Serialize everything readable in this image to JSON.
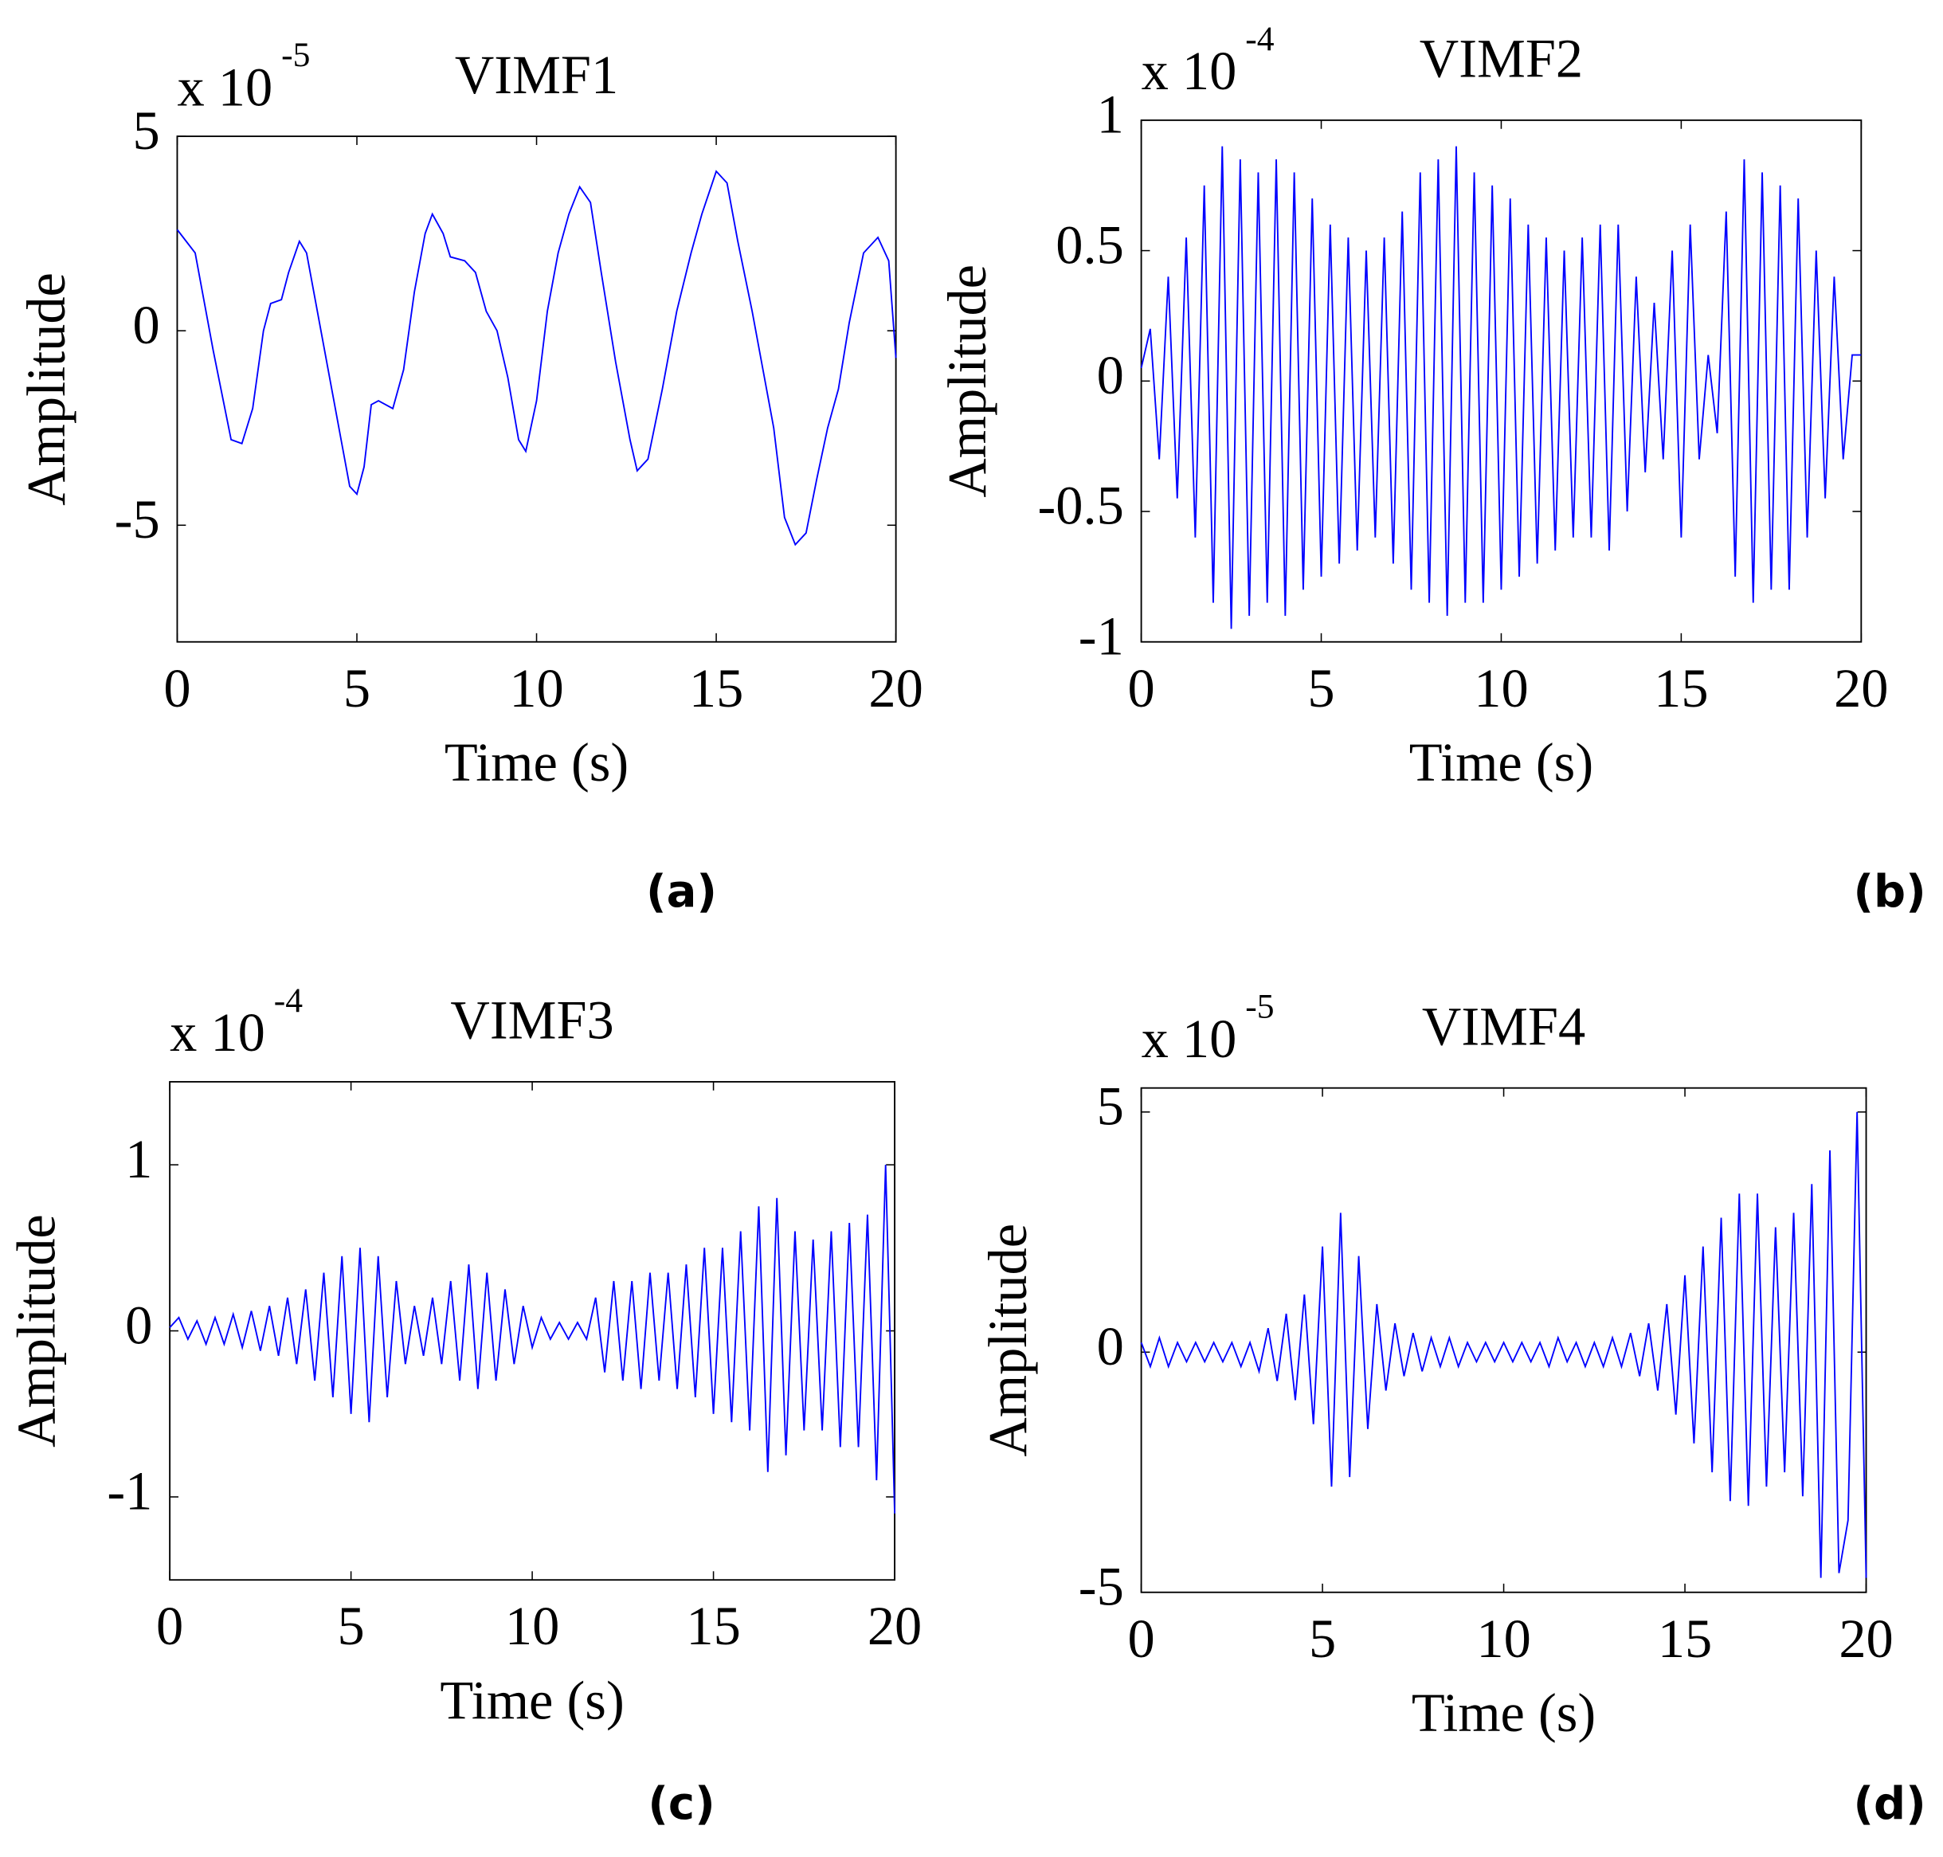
{
  "chart_data": [
    {
      "type": "line",
      "title": "VIMF1",
      "exponent_base": "x 10",
      "exponent": "-5",
      "xlabel": "Time (s)",
      "ylabel": "Amplitude",
      "panel_label": "(a)",
      "color": "#0000ff",
      "x": [
        0,
        0.5,
        1.0,
        1.5,
        1.8,
        2.1,
        2.4,
        2.6,
        2.9,
        3.1,
        3.4,
        3.6,
        3.9,
        4.3,
        4.6,
        4.8,
        5.0,
        5.2,
        5.4,
        5.6,
        6.0,
        6.3,
        6.6,
        6.9,
        7.1,
        7.4,
        7.6,
        8.0,
        8.3,
        8.6,
        8.9,
        9.2,
        9.5,
        9.7,
        10.0,
        10.3,
        10.6,
        10.9,
        11.2,
        11.5,
        11.8,
        12.2,
        12.6,
        12.8,
        13.1,
        13.5,
        13.9,
        14.3,
        14.6,
        15.0,
        15.3,
        15.6,
        16.0,
        16.3,
        16.6,
        16.9,
        17.2,
        17.5,
        17.8,
        18.1,
        18.4,
        18.7,
        19.1,
        19.5,
        19.8,
        20.0
      ],
      "values": [
        2.6,
        2.0,
        -0.5,
        -2.8,
        -2.9,
        -2.0,
        0,
        0.7,
        0.8,
        1.5,
        2.3,
        2.0,
        0.5,
        -1.5,
        -3.0,
        -4.0,
        -4.2,
        -3.5,
        -1.9,
        -1.8,
        -2.0,
        -1.0,
        1.0,
        2.5,
        3.0,
        2.5,
        1.9,
        1.8,
        1.5,
        0.5,
        0,
        -1.2,
        -2.8,
        -3.1,
        -1.8,
        0.5,
        2.0,
        3.0,
        3.7,
        3.3,
        1.5,
        -0.8,
        -2.8,
        -3.6,
        -3.3,
        -1.5,
        0.5,
        2.0,
        3.0,
        4.1,
        3.8,
        2.3,
        0.5,
        -1.0,
        -2.5,
        -4.8,
        -5.5,
        -5.2,
        -3.8,
        -2.5,
        -1.5,
        0.2,
        2.0,
        2.4,
        1.8,
        -0.7
      ],
      "xlim": [
        0,
        20
      ],
      "xticks": [
        0,
        5,
        10,
        15,
        20
      ],
      "ylim": [
        -8,
        5
      ],
      "yticks": [
        -5,
        0,
        5
      ]
    },
    {
      "type": "line",
      "title": "VIMF2",
      "exponent_base": "x 10",
      "exponent": "-4",
      "xlabel": "Time (s)",
      "ylabel": "Amplitude",
      "panel_label": "(b)",
      "color": "#0000ff",
      "x": [
        0,
        0.25,
        0.5,
        0.75,
        1,
        1.25,
        1.5,
        1.75,
        2,
        2.25,
        2.5,
        2.75,
        3,
        3.25,
        3.5,
        3.75,
        4,
        4.25,
        4.5,
        4.75,
        5,
        5.25,
        5.5,
        5.75,
        6,
        6.25,
        6.5,
        6.75,
        7,
        7.25,
        7.5,
        7.75,
        8,
        8.25,
        8.5,
        8.75,
        9,
        9.25,
        9.5,
        9.75,
        10,
        10.25,
        10.5,
        10.75,
        11,
        11.25,
        11.5,
        11.75,
        12,
        12.25,
        12.5,
        12.75,
        13,
        13.25,
        13.5,
        13.75,
        14,
        14.25,
        14.5,
        14.75,
        15,
        15.25,
        15.5,
        15.75,
        16,
        16.25,
        16.5,
        16.75,
        17,
        17.25,
        17.5,
        17.75,
        18,
        18.25,
        18.5,
        18.75,
        19,
        19.25,
        19.5,
        19.75,
        20
      ],
      "values": [
        0.05,
        0.2,
        -0.3,
        0.4,
        -0.45,
        0.55,
        -0.6,
        0.75,
        -0.85,
        0.9,
        -0.95,
        0.85,
        -0.9,
        0.8,
        -0.85,
        0.85,
        -0.9,
        0.8,
        -0.8,
        0.7,
        -0.75,
        0.6,
        -0.7,
        0.55,
        -0.65,
        0.5,
        -0.6,
        0.55,
        -0.7,
        0.65,
        -0.8,
        0.8,
        -0.85,
        0.85,
        -0.9,
        0.9,
        -0.85,
        0.8,
        -0.85,
        0.75,
        -0.8,
        0.7,
        -0.75,
        0.6,
        -0.7,
        0.55,
        -0.65,
        0.5,
        -0.6,
        0.55,
        -0.6,
        0.6,
        -0.65,
        0.6,
        -0.5,
        0.4,
        -0.35,
        0.3,
        -0.3,
        0.5,
        -0.6,
        0.6,
        -0.3,
        0.1,
        -0.2,
        0.65,
        -0.75,
        0.85,
        -0.85,
        0.8,
        -0.8,
        0.75,
        -0.8,
        0.7,
        -0.6,
        0.5,
        -0.45,
        0.4,
        -0.3,
        0.1,
        0.1
      ],
      "xlim": [
        0,
        20
      ],
      "xticks": [
        0,
        5,
        10,
        15,
        20
      ],
      "ylim": [
        -1,
        1
      ],
      "yticks": [
        -1,
        -0.5,
        0,
        0.5,
        1
      ]
    },
    {
      "type": "line",
      "title": "VIMF3",
      "exponent_base": "x 10",
      "exponent": "-4",
      "xlabel": "Time (s)",
      "ylabel": "Amplitude",
      "panel_label": "(c)",
      "color": "#0000ff",
      "x": [
        0,
        0.25,
        0.5,
        0.75,
        1,
        1.25,
        1.5,
        1.75,
        2,
        2.25,
        2.5,
        2.75,
        3,
        3.25,
        3.5,
        3.75,
        4,
        4.25,
        4.5,
        4.75,
        5,
        5.25,
        5.5,
        5.75,
        6,
        6.25,
        6.5,
        6.75,
        7,
        7.25,
        7.5,
        7.75,
        8,
        8.25,
        8.5,
        8.75,
        9,
        9.25,
        9.5,
        9.75,
        10,
        10.25,
        10.5,
        10.75,
        11,
        11.25,
        11.5,
        11.75,
        12,
        12.25,
        12.5,
        12.75,
        13,
        13.25,
        13.5,
        13.75,
        14,
        14.25,
        14.5,
        14.75,
        15,
        15.25,
        15.5,
        15.75,
        16,
        16.25,
        16.5,
        16.75,
        17,
        17.25,
        17.5,
        17.75,
        18,
        18.25,
        18.5,
        18.75,
        19,
        19.25,
        19.5,
        19.75,
        20
      ],
      "values": [
        0.02,
        0.08,
        -0.05,
        0.06,
        -0.08,
        0.08,
        -0.08,
        0.1,
        -0.1,
        0.12,
        -0.12,
        0.15,
        -0.15,
        0.2,
        -0.2,
        0.25,
        -0.3,
        0.35,
        -0.4,
        0.45,
        -0.5,
        0.5,
        -0.55,
        0.45,
        -0.4,
        0.3,
        -0.2,
        0.15,
        -0.15,
        0.2,
        -0.2,
        0.3,
        -0.3,
        0.4,
        -0.35,
        0.35,
        -0.3,
        0.25,
        -0.2,
        0.15,
        -0.1,
        0.08,
        -0.05,
        0.05,
        -0.05,
        0.05,
        -0.05,
        0.2,
        -0.25,
        0.3,
        -0.3,
        0.3,
        -0.35,
        0.35,
        -0.3,
        0.35,
        -0.35,
        0.4,
        -0.4,
        0.5,
        -0.5,
        0.5,
        -0.55,
        0.6,
        -0.6,
        0.75,
        -0.85,
        0.8,
        -0.75,
        0.6,
        -0.6,
        0.55,
        -0.6,
        0.6,
        -0.7,
        0.65,
        -0.7,
        0.7,
        -0.9,
        1.0,
        -1.1
      ],
      "xlim": [
        0,
        20
      ],
      "xticks": [
        0,
        5,
        10,
        15,
        20
      ],
      "ylim": [
        -1.5,
        1.5
      ],
      "yticks": [
        -1,
        0,
        1
      ]
    },
    {
      "type": "line",
      "title": "VIMF4",
      "exponent_base": "x 10",
      "exponent": "-5",
      "xlabel": "Time (s)",
      "ylabel": "Amplitude",
      "panel_label": "(d)",
      "color": "#0000ff",
      "x": [
        0,
        0.25,
        0.5,
        0.75,
        1,
        1.25,
        1.5,
        1.75,
        2,
        2.25,
        2.5,
        2.75,
        3,
        3.25,
        3.5,
        3.75,
        4,
        4.25,
        4.5,
        4.75,
        5,
        5.25,
        5.5,
        5.75,
        6,
        6.25,
        6.5,
        6.75,
        7,
        7.25,
        7.5,
        7.75,
        8,
        8.25,
        8.5,
        8.75,
        9,
        9.25,
        9.5,
        9.75,
        10,
        10.25,
        10.5,
        10.75,
        11,
        11.25,
        11.5,
        11.75,
        12,
        12.25,
        12.5,
        12.75,
        13,
        13.25,
        13.5,
        13.75,
        14,
        14.25,
        14.5,
        14.75,
        15,
        15.25,
        15.5,
        15.75,
        16,
        16.25,
        16.5,
        16.75,
        17,
        17.25,
        17.5,
        17.75,
        18,
        18.25,
        18.5,
        18.75,
        19,
        19.25,
        19.5,
        19.75,
        20
      ],
      "values": [
        0.2,
        -0.3,
        0.3,
        -0.3,
        0.2,
        -0.2,
        0.2,
        -0.2,
        0.2,
        -0.2,
        0.2,
        -0.3,
        0.2,
        -0.4,
        0.5,
        -0.6,
        0.8,
        -1.0,
        1.2,
        -1.5,
        2.2,
        -2.8,
        2.9,
        -2.6,
        2.0,
        -1.6,
        1.0,
        -0.8,
        0.6,
        -0.5,
        0.4,
        -0.4,
        0.3,
        -0.3,
        0.3,
        -0.3,
        0.2,
        -0.2,
        0.2,
        -0.2,
        0.2,
        -0.2,
        0.2,
        -0.2,
        0.2,
        -0.3,
        0.3,
        -0.2,
        0.2,
        -0.3,
        0.2,
        -0.3,
        0.3,
        -0.3,
        0.4,
        -0.5,
        0.6,
        -0.8,
        1.0,
        -1.3,
        1.6,
        -1.9,
        2.2,
        -2.5,
        2.8,
        -3.1,
        3.3,
        -3.2,
        3.3,
        -2.8,
        2.6,
        -2.5,
        2.9,
        -3.0,
        3.5,
        -4.7,
        4.2,
        -4.6,
        -3.5,
        5.0,
        -4.7
      ],
      "xlim": [
        0,
        20
      ],
      "xticks": [
        0,
        5,
        10,
        15,
        20
      ],
      "ylim": [
        -5,
        5.5
      ],
      "yticks": [
        -5,
        0,
        5
      ]
    }
  ]
}
